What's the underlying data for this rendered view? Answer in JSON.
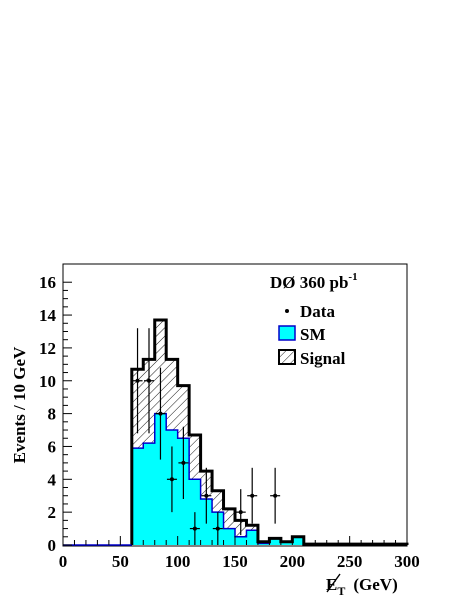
{
  "chart_data": {
    "type": "bar",
    "xlabel": "E̸T (GeV)",
    "xlabel_parts": {
      "symbol": "E",
      "sub": "T",
      "unit": "(GeV)"
    },
    "ylabel": "Events / 10 GeV",
    "xlim": [
      0,
      300
    ],
    "ylim": [
      0,
      16.5
    ],
    "xticks": [
      0,
      50,
      100,
      150,
      200,
      250,
      300
    ],
    "yticks": [
      0,
      2,
      4,
      6,
      8,
      10,
      12,
      14,
      16
    ],
    "grid": false,
    "legend_position": "top-right",
    "annotation": {
      "main": "DØ 360 pb",
      "sup": "-1"
    },
    "legend": {
      "data": "Data",
      "sm": "SM",
      "signal": "Signal"
    },
    "colors": {
      "sm_fill": "#00ffff",
      "sm_line": "#0000cc",
      "signal_line": "#000000",
      "data_marker": "#000000"
    },
    "bin_edges": [
      60,
      70,
      80,
      90,
      100,
      110,
      120,
      130,
      140,
      150,
      160,
      170,
      180,
      190,
      200,
      210,
      220,
      230,
      240,
      250,
      260,
      270,
      280,
      290,
      300
    ],
    "series": [
      {
        "name": "SM",
        "values": [
          5.9,
          6.2,
          8.0,
          7.0,
          6.5,
          4.0,
          2.8,
          2.0,
          1.0,
          0.5,
          0.9,
          0.1,
          0.4,
          0.2,
          0.5,
          0.05,
          0.05,
          0.05,
          0.05,
          0.05,
          0.05,
          0.05,
          0.05,
          0.05
        ]
      },
      {
        "name": "Signal",
        "values": [
          10.7,
          11.3,
          13.7,
          11.3,
          9.7,
          6.7,
          4.5,
          3.3,
          2.2,
          1.5,
          1.2,
          0.2,
          0.4,
          0.2,
          0.5,
          0.05,
          0.05,
          0.05,
          0.05,
          0.05,
          0.05,
          0.05,
          0.05,
          0.05
        ]
      },
      {
        "name": "Data",
        "points": [
          {
            "x": 65,
            "y": 10,
            "err": 3.2
          },
          {
            "x": 75,
            "y": 10,
            "err": 3.2
          },
          {
            "x": 85,
            "y": 8,
            "err": 2.8
          },
          {
            "x": 95,
            "y": 4,
            "err": 2.0
          },
          {
            "x": 105,
            "y": 5,
            "err": 2.2
          },
          {
            "x": 115,
            "y": 1,
            "err": 1.0
          },
          {
            "x": 125,
            "y": 3,
            "err": 1.7
          },
          {
            "x": 135,
            "y": 1,
            "err": 1.0
          },
          {
            "x": 155,
            "y": 2,
            "err": 1.4
          },
          {
            "x": 165,
            "y": 3,
            "err": 1.7
          },
          {
            "x": 185,
            "y": 3,
            "err": 1.7
          }
        ]
      }
    ]
  }
}
